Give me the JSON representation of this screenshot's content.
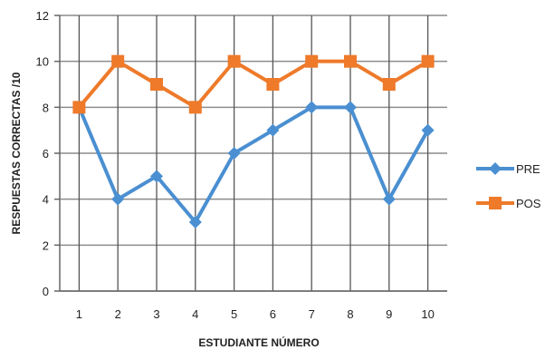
{
  "chart_data": {
    "type": "line",
    "categories": [
      "1",
      "2",
      "3",
      "4",
      "5",
      "6",
      "7",
      "8",
      "9",
      "10"
    ],
    "series": [
      {
        "name": "PRE",
        "color": "#4a8fd1",
        "marker": "diamond",
        "values": [
          8,
          4,
          5,
          3,
          6,
          7,
          8,
          8,
          4,
          7
        ]
      },
      {
        "name": "POS",
        "color": "#ee7a2a",
        "marker": "square",
        "values": [
          8,
          10,
          9,
          8,
          10,
          9,
          10,
          10,
          9,
          10
        ]
      }
    ],
    "xlabel": "ESTUDIANTE  NÚMERO",
    "ylabel": "RESPUESTAS  CORRECTAS  /10",
    "ylim": [
      0,
      12
    ],
    "yticks": [
      0,
      2,
      4,
      6,
      8,
      10,
      12
    ],
    "grid": {
      "horizontal": true,
      "vertical": true
    },
    "legend": "right"
  }
}
